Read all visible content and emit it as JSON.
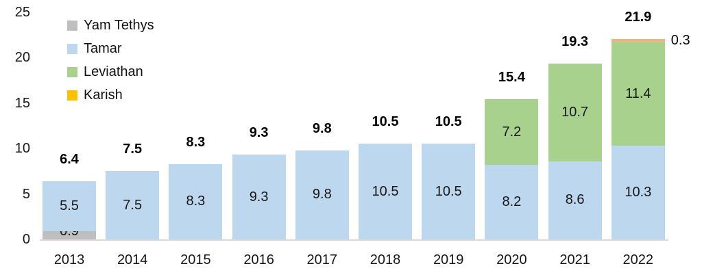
{
  "background_color": "#ffffff",
  "axis_color": "#d9d9d9",
  "text_color": "#171717",
  "chart_data": {
    "type": "bar",
    "stacked": true,
    "title": "",
    "xlabel": "",
    "ylabel": "",
    "categories": [
      "2013",
      "2014",
      "2015",
      "2016",
      "2017",
      "2018",
      "2019",
      "2020",
      "2021",
      "2022"
    ],
    "series": [
      {
        "name": "Yam Tethys",
        "legend_color": "#bfbfbf",
        "bar_color": "#bfbfbf",
        "values": [
          0.9,
          0,
          0,
          0,
          0,
          0,
          0,
          0,
          0,
          0
        ]
      },
      {
        "name": "Tamar",
        "legend_color": "#bdd7ee",
        "bar_color": "#bdd7ee",
        "values": [
          5.5,
          7.5,
          8.3,
          9.3,
          9.8,
          10.5,
          10.5,
          8.2,
          8.6,
          10.3
        ]
      },
      {
        "name": "Leviathan",
        "legend_color": "#a9d18e",
        "bar_color": "#a9d18e",
        "values": [
          0,
          0,
          0,
          0,
          0,
          0,
          0,
          7.2,
          10.7,
          11.4
        ]
      },
      {
        "name": "Karish",
        "legend_color": "#ffc000",
        "bar_color": "#f4b183",
        "label_outside": true,
        "values": [
          0,
          0,
          0,
          0,
          0,
          0,
          0,
          0,
          0,
          0.3
        ]
      }
    ],
    "total_labels": [
      "6.4",
      "7.5",
      "8.3",
      "9.3",
      "9.8",
      "10.5",
      "10.5",
      "15.4",
      "19.3",
      "21.9"
    ],
    "segment_labels": {
      "2013": {
        "Yam Tethys": "0.9",
        "Tamar": "5.5"
      },
      "2014": {
        "Tamar": "7.5"
      },
      "2015": {
        "Tamar": "8.3"
      },
      "2016": {
        "Tamar": "9.3"
      },
      "2017": {
        "Tamar": "9.8"
      },
      "2018": {
        "Tamar": "10.5"
      },
      "2019": {
        "Tamar": "10.5"
      },
      "2020": {
        "Tamar": "8.2",
        "Leviathan": "7.2"
      },
      "2021": {
        "Tamar": "8.6",
        "Leviathan": "10.7"
      },
      "2022": {
        "Tamar": "10.3",
        "Leviathan": "11.4",
        "Karish": "0.3"
      }
    },
    "ylim": [
      0,
      25
    ],
    "yticks": [
      0,
      5,
      10,
      15,
      20,
      25
    ],
    "grid": false,
    "legend_position": "top-left",
    "legend_order": [
      "Yam Tethys",
      "Tamar",
      "Leviathan",
      "Karish"
    ]
  }
}
